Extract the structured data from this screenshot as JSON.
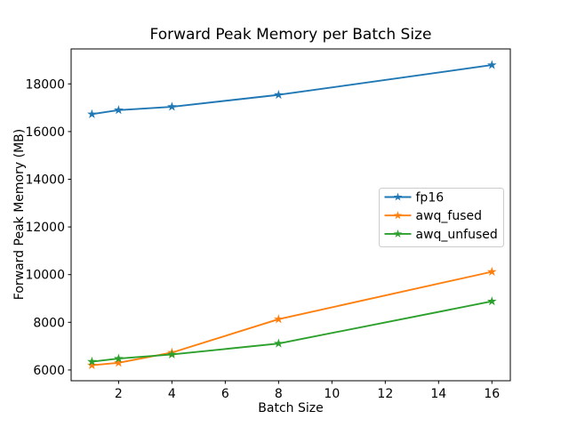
{
  "chart_data": {
    "type": "line",
    "title": "Forward Peak Memory per Batch Size",
    "xlabel": "Batch Size",
    "ylabel": "Forward Peak Memory (MB)",
    "x": [
      1,
      2,
      4,
      8,
      16
    ],
    "series": [
      {
        "name": "fp16",
        "color": "#1f77b4",
        "values": [
          16730,
          16900,
          17040,
          17540,
          18790
        ]
      },
      {
        "name": "awq_fused",
        "color": "#ff7f0e",
        "values": [
          6200,
          6300,
          6730,
          8130,
          10120
        ]
      },
      {
        "name": "awq_unfused",
        "color": "#2ca02c",
        "values": [
          6350,
          6480,
          6650,
          7110,
          8880
        ]
      }
    ],
    "x_ticks": [
      2,
      4,
      6,
      8,
      10,
      12,
      14,
      16
    ],
    "y_ticks": [
      6000,
      8000,
      10000,
      12000,
      14000,
      16000,
      18000
    ],
    "xlim": [
      0.22,
      16.69
    ],
    "ylim": [
      5549,
      19466
    ],
    "grid": false,
    "marker": "star",
    "legend_position": "center right",
    "legend_labels": [
      "fp16",
      "awq_fused",
      "awq_unfused"
    ]
  },
  "style_colors": {
    "background": "#ffffff",
    "spine": "#000000",
    "tick_text": "#000000",
    "legend_border": "#cccccc",
    "legend_background": "#ffffff"
  }
}
